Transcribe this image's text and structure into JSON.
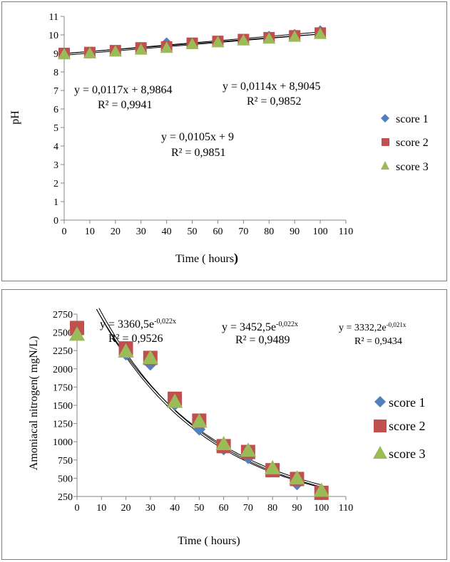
{
  "chart_data": [
    {
      "type": "scatter",
      "title": "",
      "xlabel": "Time ( hours",
      "xlabel_suffix": ")",
      "ylabel": "pH",
      "xlim": [
        0,
        110
      ],
      "ylim": [
        0,
        11
      ],
      "x_ticks": [
        0,
        10,
        20,
        30,
        40,
        50,
        60,
        70,
        80,
        90,
        100,
        110
      ],
      "y_ticks": [
        0,
        1,
        2,
        3,
        4,
        5,
        6,
        7,
        8,
        9,
        10,
        11
      ],
      "grid": false,
      "legend": "right",
      "x": [
        0,
        10,
        20,
        30,
        40,
        50,
        60,
        70,
        80,
        90,
        100
      ],
      "series": [
        {
          "name": "score 1",
          "marker": "diamond",
          "color": "#4f81bd",
          "values": [
            9.0,
            9.1,
            9.2,
            9.3,
            9.6,
            9.6,
            9.7,
            9.8,
            9.95,
            10.05,
            10.25
          ]
        },
        {
          "name": "score 2",
          "marker": "square",
          "color": "#c0504d",
          "values": [
            9.0,
            9.05,
            9.15,
            9.3,
            9.35,
            9.55,
            9.65,
            9.75,
            9.85,
            9.95,
            10.1
          ]
        },
        {
          "name": "score 3",
          "marker": "triangle",
          "color": "#9bbb59",
          "values": [
            8.95,
            9.0,
            9.1,
            9.2,
            9.3,
            9.5,
            9.6,
            9.7,
            9.8,
            9.9,
            10.05
          ]
        }
      ],
      "trendlines": [
        {
          "kind": "linear",
          "a": 0.0117,
          "b": 8.9864
        },
        {
          "kind": "linear",
          "a": 0.0114,
          "b": 8.9045
        },
        {
          "kind": "linear",
          "a": 0.0105,
          "b": 9
        }
      ],
      "annotations": [
        {
          "line1": "y = 0,0117x + 8,9864",
          "line2": "R² = 0,9941"
        },
        {
          "line1": "y = 0,0114x + 8,9045",
          "line2": "R² = 0,9852"
        },
        {
          "line1": "y = 0,0105x + 9",
          "line2": "R² = 0,9851"
        }
      ]
    },
    {
      "type": "scatter",
      "title": "",
      "xlabel": "Time ( hours)",
      "ylabel": "Amoniacal nitrogen( mgN/L)",
      "xlim": [
        0,
        110
      ],
      "ylim": [
        250,
        2750
      ],
      "x_ticks": [
        0,
        10,
        20,
        30,
        40,
        50,
        60,
        70,
        80,
        90,
        100,
        110
      ],
      "y_ticks": [
        250,
        500,
        750,
        1000,
        1250,
        1500,
        1750,
        2000,
        2250,
        2500,
        2750
      ],
      "grid": false,
      "legend": "right",
      "x": [
        0,
        20,
        30,
        40,
        50,
        60,
        70,
        80,
        90,
        100
      ],
      "series": [
        {
          "name": "score 1",
          "marker": "diamond",
          "color": "#4f81bd",
          "values": [
            null,
            2200,
            2060,
            1510,
            1170,
            900,
            780,
            620,
            420,
            280
          ]
        },
        {
          "name": "score 2",
          "marker": "square",
          "color": "#c0504d",
          "values": [
            2560,
            2280,
            2150,
            1590,
            1290,
            940,
            860,
            610,
            490,
            300
          ]
        },
        {
          "name": "score 3",
          "marker": "triangle",
          "color": "#9bbb59",
          "values": [
            2470,
            2240,
            2150,
            1550,
            1280,
            970,
            880,
            640,
            500,
            330
          ]
        }
      ],
      "trendlines": [
        {
          "kind": "exponential",
          "a": 3360.5,
          "b": -0.022
        },
        {
          "kind": "exponential",
          "a": 3452.5,
          "b": -0.022
        },
        {
          "kind": "exponential",
          "a": 3332.2,
          "b": -0.021
        }
      ],
      "annotations": [
        {
          "coef": "y = 3360,5e",
          "exp": "-0,022x",
          "r2": "R² = 0,9526"
        },
        {
          "coef": "y = 3452,5e",
          "exp": "-0,022x",
          "r2": "R² = 0,9489"
        },
        {
          "coef": "y = 3332,2e",
          "exp": "-0,021x",
          "r2": "R² = 0,9434"
        }
      ]
    }
  ]
}
